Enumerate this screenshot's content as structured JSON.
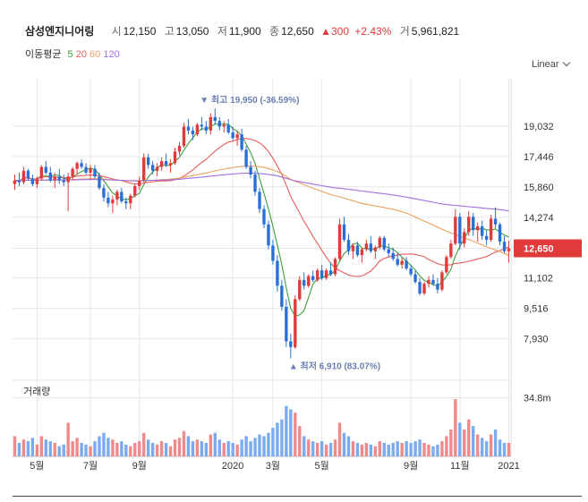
{
  "header": {
    "name": "삼성엔지니어링",
    "open_label": "시",
    "open": "12,150",
    "high_label": "고",
    "high": "13,050",
    "low_label": "저",
    "low": "11,900",
    "close_label": "종",
    "close": "12,650",
    "change": "▲300",
    "change_pct": "+2.43%",
    "volume_label": "거",
    "volume": "5,961,821"
  },
  "ma_legend": {
    "title": "이동평균",
    "items": [
      {
        "label": "5",
        "color": "#3aa03a"
      },
      {
        "label": "20",
        "color": "#e85a5a"
      },
      {
        "label": "60",
        "color": "#e8a060"
      },
      {
        "label": "120",
        "color": "#a070e0"
      }
    ]
  },
  "scale_toggle": "Linear",
  "colors": {
    "up": "#e03a3a",
    "down": "#2a6fd6",
    "up_vol": "#f08a8a",
    "down_vol": "#7aaaf0",
    "grid": "#e6e6e6"
  },
  "chart_data": {
    "type": "candlestick",
    "y_ticks": [
      19032,
      17446,
      15860,
      14274,
      12650,
      11102,
      9516,
      7930
    ],
    "y_tick_labels": [
      "19,032",
      "17,446",
      "15,860",
      "14,274",
      "12,650",
      "11,102",
      "9,516",
      "7,930"
    ],
    "current_price_label": "12,650",
    "ylim": [
      6000,
      21500
    ],
    "x_tick_labels": [
      "5월",
      "7월",
      "9월",
      "2020",
      "3월",
      "5월",
      "9월",
      "11월",
      "2021"
    ],
    "x_tick_index": [
      5,
      17,
      28,
      49,
      58,
      69,
      89,
      100,
      111
    ],
    "annotations": {
      "high": {
        "text": "최고 19,950 (-36.59%)",
        "index": 45,
        "value": 19950
      },
      "low": {
        "text": "최저 6,910 (83.07%)",
        "index": 62,
        "value": 6910
      }
    },
    "volume_label": "거래량",
    "volume_tick_label": "34.8m",
    "volume_tick": 34.8,
    "candles": [
      [
        16000,
        16500,
        15700,
        16200,
        12
      ],
      [
        16200,
        16600,
        15900,
        16100,
        8
      ],
      [
        16100,
        16900,
        16000,
        16700,
        10
      ],
      [
        16700,
        16800,
        16200,
        16300,
        9
      ],
      [
        16300,
        16500,
        15900,
        16000,
        11
      ],
      [
        16000,
        16400,
        15800,
        16300,
        7
      ],
      [
        16300,
        17000,
        16200,
        16900,
        12
      ],
      [
        16900,
        17200,
        16500,
        16600,
        10
      ],
      [
        16600,
        16900,
        16100,
        16200,
        9
      ],
      [
        16200,
        16600,
        15800,
        16400,
        8
      ],
      [
        16400,
        16800,
        16000,
        16200,
        6
      ],
      [
        16200,
        16500,
        15900,
        16100,
        7
      ],
      [
        16100,
        16600,
        14600,
        16400,
        20
      ],
      [
        16400,
        16900,
        16200,
        16800,
        9
      ],
      [
        16800,
        17200,
        16500,
        17100,
        11
      ],
      [
        17100,
        17300,
        16800,
        16900,
        8
      ],
      [
        16900,
        17100,
        16500,
        16600,
        7
      ],
      [
        16600,
        17000,
        16300,
        16800,
        6
      ],
      [
        16800,
        17000,
        16300,
        16400,
        9
      ],
      [
        16400,
        16600,
        15700,
        15800,
        12
      ],
      [
        15800,
        16000,
        15100,
        15300,
        14
      ],
      [
        15300,
        15600,
        14800,
        15000,
        11
      ],
      [
        15000,
        15400,
        14500,
        15200,
        10
      ],
      [
        15200,
        15700,
        14900,
        15600,
        8
      ],
      [
        15600,
        15800,
        15000,
        15100,
        9
      ],
      [
        15100,
        15300,
        14700,
        15000,
        7
      ],
      [
        15000,
        15500,
        14700,
        15400,
        6
      ],
      [
        15400,
        16000,
        15300,
        15900,
        8
      ],
      [
        15900,
        16400,
        15700,
        16200,
        9
      ],
      [
        16200,
        17600,
        16100,
        17400,
        14
      ],
      [
        17400,
        17600,
        16800,
        17000,
        10
      ],
      [
        17000,
        17200,
        16500,
        16700,
        8
      ],
      [
        16700,
        17100,
        16400,
        16900,
        7
      ],
      [
        16900,
        17400,
        16700,
        17200,
        9
      ],
      [
        17200,
        17600,
        16900,
        17000,
        8
      ],
      [
        17000,
        17300,
        16600,
        17100,
        6
      ],
      [
        17100,
        17900,
        17000,
        17700,
        10
      ],
      [
        17700,
        18200,
        17500,
        18000,
        11
      ],
      [
        18000,
        19200,
        17900,
        19000,
        15
      ],
      [
        19000,
        19400,
        18600,
        18800,
        12
      ],
      [
        18800,
        19000,
        18300,
        18600,
        9
      ],
      [
        18600,
        19200,
        18500,
        19100,
        10
      ],
      [
        19100,
        19500,
        18800,
        19000,
        9
      ],
      [
        19000,
        19300,
        18600,
        18800,
        8
      ],
      [
        18800,
        19700,
        18600,
        19500,
        13
      ],
      [
        19500,
        19950,
        19100,
        19300,
        14
      ],
      [
        19300,
        19500,
        18800,
        19000,
        10
      ],
      [
        19000,
        19300,
        18700,
        19100,
        8
      ],
      [
        19100,
        19400,
        18600,
        18700,
        9
      ],
      [
        18700,
        19000,
        18300,
        18400,
        8
      ],
      [
        18400,
        18800,
        18000,
        18600,
        7
      ],
      [
        18600,
        18900,
        17700,
        17800,
        10
      ],
      [
        17800,
        18000,
        16800,
        16900,
        12
      ],
      [
        16900,
        17200,
        16300,
        16500,
        9
      ],
      [
        16500,
        16700,
        15400,
        15600,
        11
      ],
      [
        15600,
        15800,
        14500,
        14700,
        13
      ],
      [
        14700,
        14900,
        13700,
        13900,
        12
      ],
      [
        13900,
        14100,
        12600,
        12800,
        14
      ],
      [
        12800,
        13100,
        11800,
        12000,
        17
      ],
      [
        12000,
        12300,
        10400,
        10700,
        20
      ],
      [
        10700,
        11000,
        9400,
        9600,
        22
      ],
      [
        9600,
        10000,
        7500,
        7800,
        30
      ],
      [
        7800,
        8200,
        6910,
        7500,
        28
      ],
      [
        7500,
        10200,
        7400,
        10000,
        26
      ],
      [
        10000,
        11200,
        9900,
        11000,
        18
      ],
      [
        11000,
        11400,
        10500,
        10700,
        12
      ],
      [
        10700,
        11300,
        10600,
        11200,
        10
      ],
      [
        11200,
        11500,
        10900,
        11000,
        9
      ],
      [
        11000,
        11600,
        10900,
        11500,
        8
      ],
      [
        11500,
        11800,
        11000,
        11100,
        9
      ],
      [
        11100,
        11600,
        11000,
        11500,
        7
      ],
      [
        11500,
        11900,
        11200,
        11300,
        8
      ],
      [
        11300,
        12200,
        11200,
        12100,
        10
      ],
      [
        12100,
        14200,
        12000,
        13900,
        20
      ],
      [
        13900,
        14300,
        13000,
        13100,
        14
      ],
      [
        13100,
        13400,
        12300,
        12500,
        12
      ],
      [
        12500,
        12900,
        12100,
        12800,
        9
      ],
      [
        12800,
        13000,
        12200,
        12300,
        8
      ],
      [
        12300,
        12700,
        11900,
        12600,
        7
      ],
      [
        12600,
        13100,
        12500,
        12900,
        8
      ],
      [
        12900,
        13300,
        12400,
        12500,
        7
      ],
      [
        12500,
        12800,
        12100,
        12700,
        6
      ],
      [
        12700,
        13300,
        12600,
        13200,
        9
      ],
      [
        13200,
        13300,
        12500,
        12600,
        8
      ],
      [
        12600,
        12900,
        12200,
        12400,
        7
      ],
      [
        12400,
        12700,
        12000,
        12100,
        8
      ],
      [
        12100,
        12400,
        11700,
        11800,
        9
      ],
      [
        11800,
        12200,
        11600,
        12000,
        8
      ],
      [
        12000,
        12200,
        11500,
        11600,
        9
      ],
      [
        11600,
        11800,
        11200,
        11300,
        8
      ],
      [
        11300,
        11500,
        10800,
        10900,
        9
      ],
      [
        10900,
        11100,
        10200,
        10300,
        10
      ],
      [
        10300,
        10900,
        10200,
        10800,
        8
      ],
      [
        10800,
        11200,
        10600,
        11000,
        7
      ],
      [
        11000,
        11300,
        10700,
        10800,
        6
      ],
      [
        10800,
        11100,
        10300,
        10500,
        7
      ],
      [
        10500,
        11500,
        10400,
        11400,
        9
      ],
      [
        11400,
        12300,
        11300,
        12200,
        12
      ],
      [
        12200,
        13100,
        12100,
        12900,
        16
      ],
      [
        12900,
        14700,
        12800,
        14300,
        34
      ],
      [
        14300,
        14500,
        12600,
        12900,
        20
      ],
      [
        12900,
        13700,
        12700,
        13500,
        16
      ],
      [
        13500,
        14600,
        13300,
        14300,
        22
      ],
      [
        14300,
        14500,
        13300,
        13600,
        18
      ],
      [
        13600,
        14000,
        13000,
        13800,
        13
      ],
      [
        13800,
        14100,
        13100,
        13300,
        11
      ],
      [
        13300,
        13600,
        12800,
        13100,
        9
      ],
      [
        13100,
        14400,
        13000,
        14200,
        13
      ],
      [
        14200,
        14800,
        13700,
        13900,
        16
      ],
      [
        13900,
        14000,
        12800,
        13000,
        10
      ],
      [
        13000,
        13300,
        12400,
        12500,
        8
      ],
      [
        12500,
        13050,
        11900,
        12650,
        8
      ]
    ]
  }
}
